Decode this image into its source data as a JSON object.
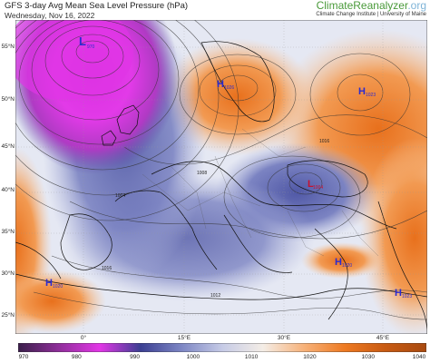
{
  "header": {
    "title": "GFS 3-day Avg Mean Sea Level Pressure (hPa)",
    "date": "Wednesday, Nov 16, 2022"
  },
  "brand": {
    "name": "ClimateReanalyzer",
    "suffix": ".org",
    "tagline": "Climate Change Institute | University of Maine"
  },
  "axes": {
    "lat_labels": [
      "55°N",
      "50°N",
      "45°N",
      "40°N",
      "35°N",
      "30°N",
      "25°N"
    ],
    "lon_labels": [
      "0°",
      "15°E",
      "30°E",
      "45°E"
    ]
  },
  "colorbar": {
    "ticks": [
      "970",
      "980",
      "990",
      "1000",
      "1010",
      "1020",
      "1030",
      "1040"
    ],
    "colors": [
      "#3a1f4a",
      "#8f2e9a",
      "#e236e6",
      "#3b3f92",
      "#7d86c4",
      "#c6cbe6",
      "#f4ede6",
      "#f7b27a",
      "#ee7a22",
      "#c85a12",
      "#a84a10"
    ]
  },
  "pressure_centers": [
    {
      "type": "L",
      "value": "970"
    },
    {
      "type": "H",
      "value": "1026"
    },
    {
      "type": "H",
      "value": "1023"
    },
    {
      "type": "L",
      "value": "1004"
    },
    {
      "type": "H",
      "value": "1020"
    },
    {
      "type": "H",
      "value": "1023"
    },
    {
      "type": "H",
      "value": "1020"
    }
  ],
  "isobar_labels": [
    "1004",
    "1008",
    "1012",
    "1016"
  ],
  "colors": {
    "low_deep": "#e236e6",
    "low": "#5a5fa8",
    "neutral": "#e9eaf4",
    "high": "#ee7a22",
    "center_symbol": "#2b2bd0"
  }
}
